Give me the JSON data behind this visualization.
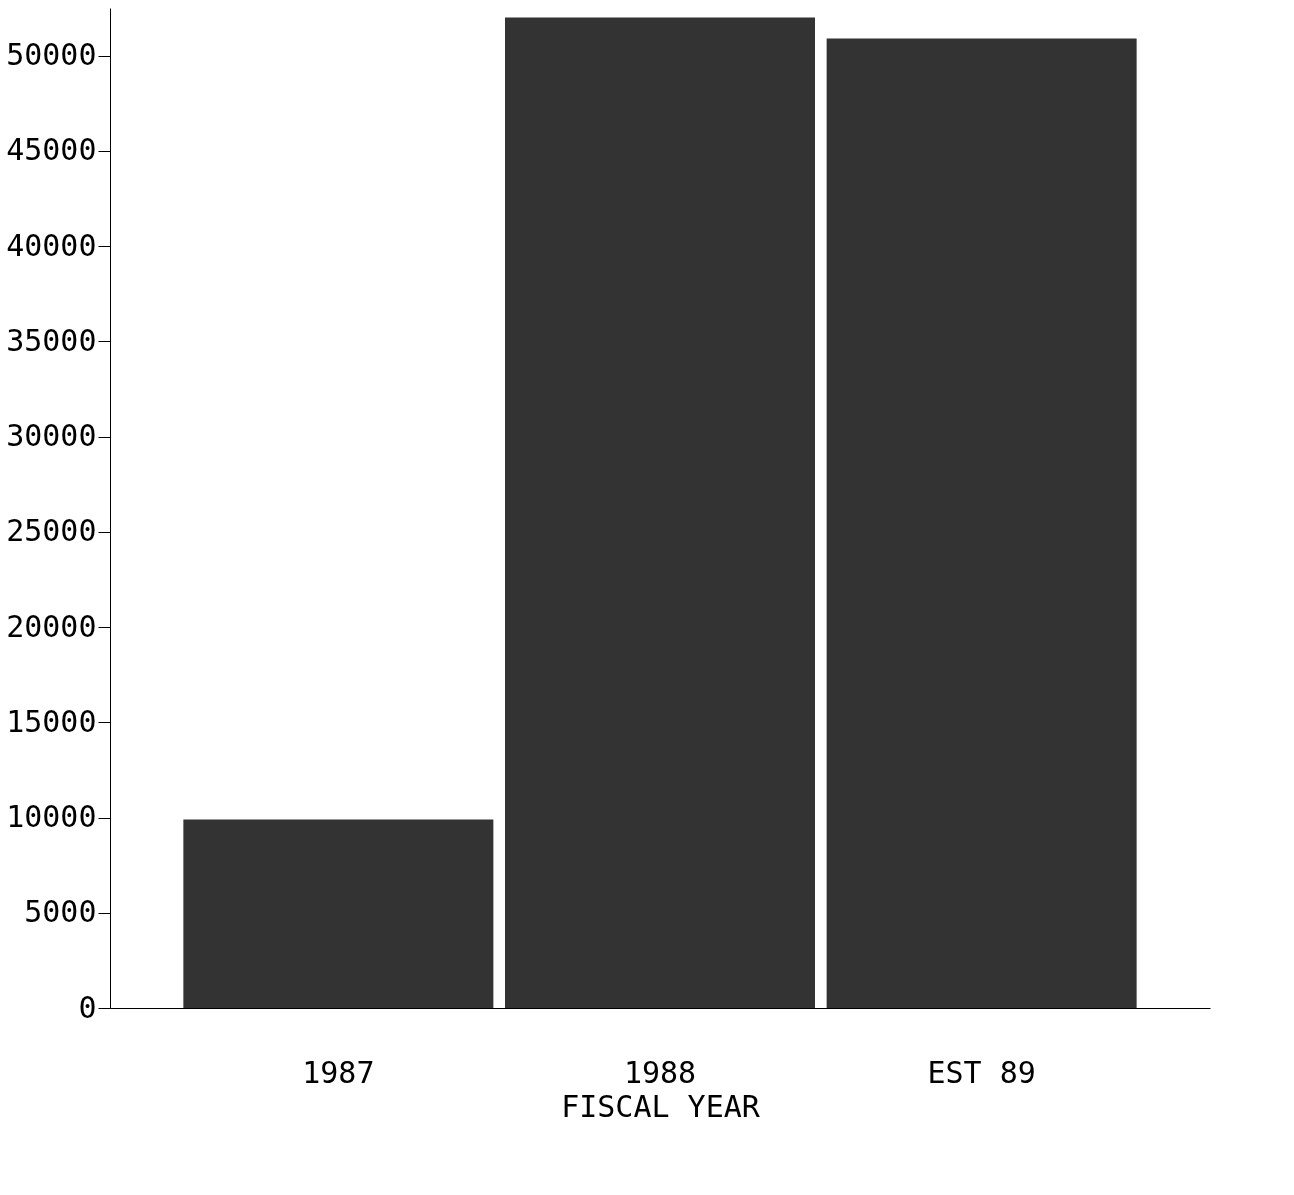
{
  "chart_data": {
    "type": "bar",
    "xlabel": "FISCAL YEAR",
    "categories": [
      "1987",
      "1988",
      "EST 89"
    ],
    "values": [
      9900,
      52000,
      50900
    ],
    "color": "#333333",
    "ylim": [
      0,
      52500
    ],
    "yticks": [
      0,
      5000,
      10000,
      15000,
      20000,
      25000,
      30000,
      35000,
      40000,
      45000,
      50000
    ],
    "grid": false
  }
}
